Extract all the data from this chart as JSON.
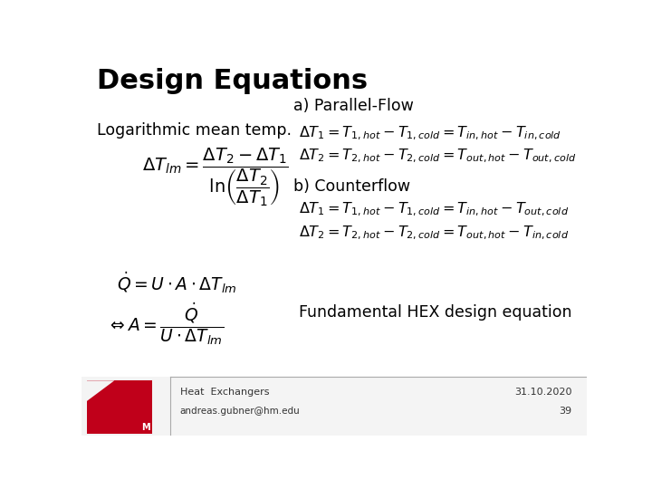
{
  "title": "Design Equations",
  "title_fontsize": 22,
  "bg_color": "#ffffff",
  "text_color": "#000000",
  "logo_color": "#c0001a",
  "sections": {
    "parallel_flow_label": "a) Parallel-Flow",
    "counterflow_label": "b) Counterflow",
    "fundamental_label": "Fundamental HEX design equation",
    "log_mean_label": "Logarithmic mean temp."
  },
  "footer": {
    "course": "Heat  Exchangers",
    "email": "andreas.gubner@hm.edu",
    "date": "31.10.2020",
    "page": "39"
  },
  "formulas": {
    "lmtd": "$\\Delta T_{lm} = \\dfrac{\\Delta T_2 - \\Delta T_1}{\\ln\\!\\left(\\dfrac{\\Delta T_2}{\\Delta T_1}\\right)}$",
    "pf_dt1": "$\\Delta T_1 = T_{1,hot} - T_{1,cold} = T_{in,hot} - T_{in,cold}$",
    "pf_dt2": "$\\Delta T_2 = T_{2,hot} - T_{2,cold} = T_{out,hot} - T_{out,cold}$",
    "cf_dt1": "$\\Delta T_1 = T_{1,hot} - T_{1,cold} = T_{in,hot} - T_{out,cold}$",
    "cf_dt2": "$\\Delta T_2 = T_{2,hot} - T_{2,cold} = T_{out,hot} - T_{in,cold}$",
    "q_eq": "$\\dot{Q} = U \\cdot A \\cdot \\Delta T_{lm}$",
    "a_eq": "$\\Leftrightarrow A = \\dfrac{\\dot{Q}}{U \\cdot \\Delta T_{lm}}$"
  }
}
